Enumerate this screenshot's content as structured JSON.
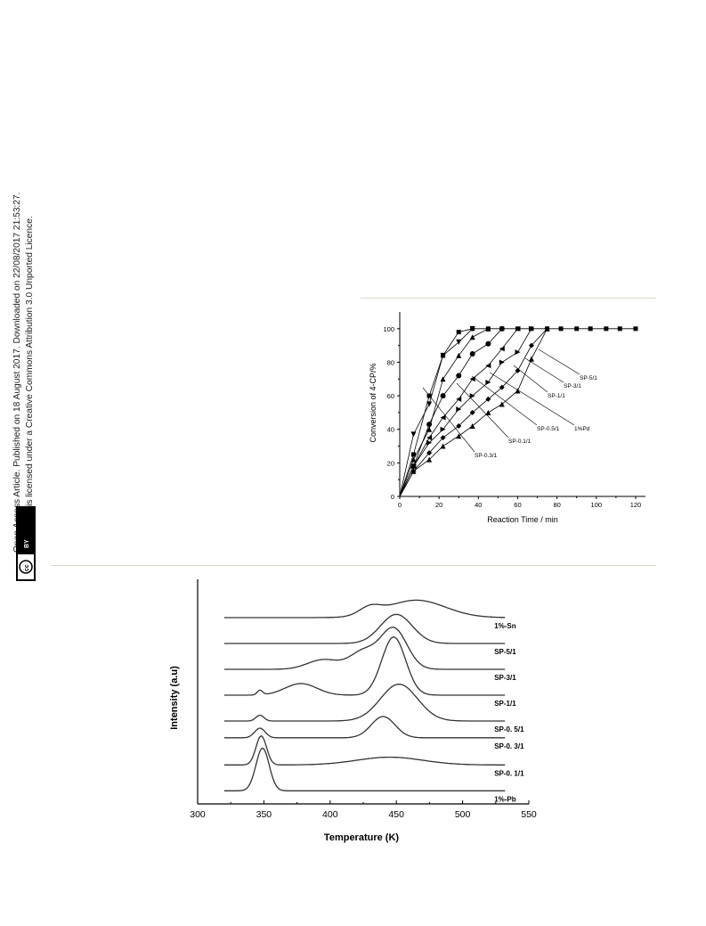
{
  "sidebar": {
    "line1": "Open Access Article. Published on 18 August 2017. Downloaded on 22/08/2017 21:53:27.",
    "line2": "This article is licensed under a Creative Commons Attribution 3.0 Unported Licence.",
    "badge_cc": "cc",
    "badge_by": "BY"
  },
  "chart_data": [
    {
      "type": "line",
      "xlabel": "Reaction Time / min",
      "ylabel": "Conversion of 4-CP/%",
      "xlim": [
        0,
        125
      ],
      "ylim": [
        0,
        110
      ],
      "xticks": [
        0,
        20,
        40,
        60,
        80,
        100,
        120
      ],
      "yticks": [
        0,
        20,
        40,
        60,
        80,
        100
      ],
      "legend": "annotations with leader lines",
      "series": [
        {
          "name": "SP-0.3/1",
          "marker": "square",
          "x": [
            0,
            7,
            15,
            22,
            30,
            37,
            45,
            52,
            60,
            67,
            75,
            82,
            90,
            97,
            105,
            112,
            120
          ],
          "y": [
            0,
            25,
            60,
            84,
            98,
            100,
            100,
            100,
            100,
            100,
            100,
            100,
            100,
            100,
            100,
            100,
            100
          ]
        },
        {
          "name": "SP-0.1/1",
          "marker": "triangle-down",
          "x": [
            0,
            7,
            15,
            22,
            30,
            37
          ],
          "y": [
            0,
            37,
            55,
            84,
            92,
            100
          ]
        },
        {
          "name": "SP-0.5/1",
          "marker": "triangle-up",
          "x": [
            0,
            7,
            15,
            22,
            30,
            37,
            45
          ],
          "y": [
            0,
            22,
            40,
            70,
            84,
            95,
            100
          ]
        },
        {
          "name": "1%Pd",
          "marker": "circle",
          "x": [
            0,
            7,
            15,
            22,
            30,
            37,
            45,
            52
          ],
          "y": [
            0,
            18,
            43,
            60,
            72,
            85,
            91,
            100
          ]
        },
        {
          "name": "SP-1/1",
          "marker": "triangle-left",
          "x": [
            0,
            7,
            15,
            22,
            30,
            37,
            45,
            52,
            60
          ],
          "y": [
            0,
            18,
            35,
            47,
            58,
            70,
            78,
            88,
            100
          ]
        },
        {
          "name": "SP-3/1",
          "marker": "triangle-right",
          "x": [
            0,
            7,
            15,
            22,
            30,
            37,
            45,
            52,
            60,
            67
          ],
          "y": [
            0,
            18,
            32,
            40,
            52,
            60,
            68,
            80,
            86,
            100
          ]
        },
        {
          "name": "SP-5/1",
          "marker": "diamond",
          "x": [
            0,
            7,
            15,
            22,
            30,
            37,
            45,
            52,
            60,
            67,
            75
          ],
          "y": [
            0,
            15,
            26,
            35,
            42,
            50,
            58,
            65,
            75,
            90,
            100
          ]
        },
        {
          "name": "",
          "marker": "triangle-up",
          "x": [
            0,
            7,
            15,
            22,
            30,
            37,
            45,
            52,
            60,
            67,
            75
          ],
          "y": [
            0,
            15,
            22,
            30,
            36,
            42,
            50,
            55,
            63,
            82,
            100
          ]
        }
      ],
      "annotations": [
        "SP-5/1",
        "SP-3/1",
        "SP-1/1",
        "1%Pd",
        "SP-0.5/1",
        "SP-0.1/1",
        "SP-0.3/1"
      ]
    },
    {
      "type": "line",
      "xlabel": "Temperature (K)",
      "ylabel": "Intensity (a.u)",
      "xlim": [
        300,
        550
      ],
      "xticks": [
        300,
        350,
        400,
        450,
        500,
        550
      ],
      "ytick_labels": "none",
      "legend": "labels at right end of each curve",
      "series": [
        {
          "name": "1%-Sn",
          "offset": 7,
          "peaks": [
            {
              "t": 465,
              "h": 0.45,
              "w": 22
            },
            {
              "t": 430,
              "h": 0.2,
              "w": 8
            }
          ]
        },
        {
          "name": "SP-5/1",
          "offset": 6,
          "peaks": [
            {
              "t": 450,
              "h": 0.75,
              "w": 12
            }
          ]
        },
        {
          "name": "SP-3/1",
          "offset": 5,
          "peaks": [
            {
              "t": 448,
              "h": 1.05,
              "w": 10
            },
            {
              "t": 425,
              "h": 0.45,
              "w": 10
            },
            {
              "t": 395,
              "h": 0.25,
              "w": 12
            }
          ]
        },
        {
          "name": "SP-1/1",
          "offset": 4,
          "peaks": [
            {
              "t": 448,
              "h": 1.5,
              "w": 9
            },
            {
              "t": 378,
              "h": 0.3,
              "w": 12
            },
            {
              "t": 347,
              "h": 0.12,
              "w": 2
            }
          ]
        },
        {
          "name": "SP-0. 5/1",
          "offset": 3,
          "peaks": [
            {
              "t": 452,
              "h": 0.95,
              "w": 14
            },
            {
              "t": 347,
              "h": 0.15,
              "w": 3
            }
          ]
        },
        {
          "name": "SP-0. 3/1",
          "offset": 2.35,
          "peaks": [
            {
              "t": 440,
              "h": 0.55,
              "w": 9
            },
            {
              "t": 347,
              "h": 0.25,
              "w": 4
            }
          ]
        },
        {
          "name": "SP-0. 1/1",
          "offset": 1.3,
          "peaks": [
            {
              "t": 348,
              "h": 0.75,
              "w": 4
            },
            {
              "t": 445,
              "h": 0.2,
              "w": 25
            }
          ]
        },
        {
          "name": "1%-Pb",
          "offset": 0.3,
          "peaks": [
            {
              "t": 349,
              "h": 1.1,
              "w": 5
            }
          ]
        }
      ]
    }
  ]
}
